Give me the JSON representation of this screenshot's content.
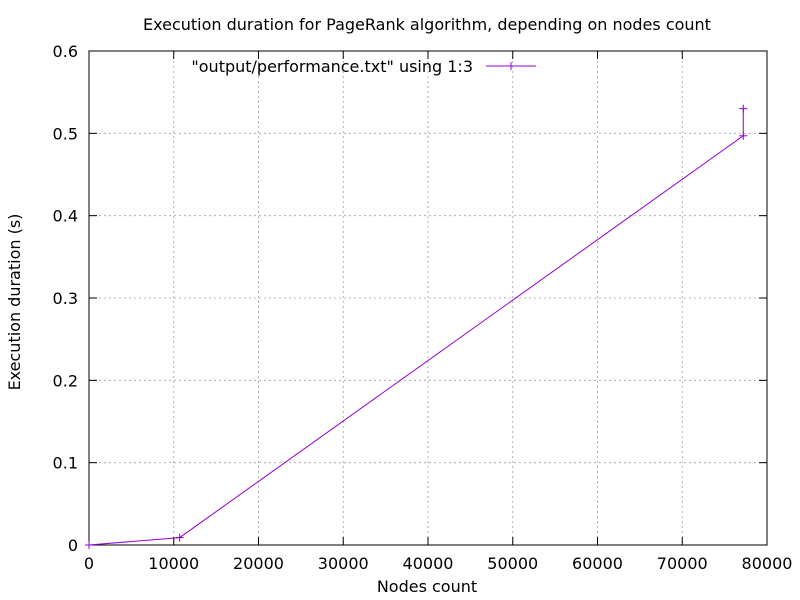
{
  "chart_data": {
    "type": "line",
    "title": "Execution duration for PageRank algorithm, depending on nodes count",
    "xlabel": "Nodes count",
    "ylabel": "Execution duration (s)",
    "xlim": [
      0,
      80000
    ],
    "ylim": [
      0,
      0.6
    ],
    "x_ticks": [
      0,
      10000,
      20000,
      30000,
      40000,
      50000,
      60000,
      70000,
      80000
    ],
    "x_tick_labels": [
      "0",
      "10000",
      "20000",
      "30000",
      "40000",
      "50000",
      "60000",
      "70000",
      "80000"
    ],
    "y_ticks": [
      0,
      0.1,
      0.2,
      0.3,
      0.4,
      0.5,
      0.6
    ],
    "y_tick_labels": [
      "0",
      "0.1",
      "0.2",
      "0.3",
      "0.4",
      "0.5",
      "0.6"
    ],
    "grid": true,
    "legend_position": "top",
    "series": [
      {
        "name": "\"output/performance.txt\" using 1:3",
        "color": "#9400d3",
        "marker": "plus",
        "points": [
          {
            "x": 0,
            "y": 0.0
          },
          {
            "x": 10700,
            "y": 0.009
          },
          {
            "x": 77200,
            "y": 0.497
          },
          {
            "x": 77200,
            "y": 0.53
          }
        ]
      }
    ]
  }
}
